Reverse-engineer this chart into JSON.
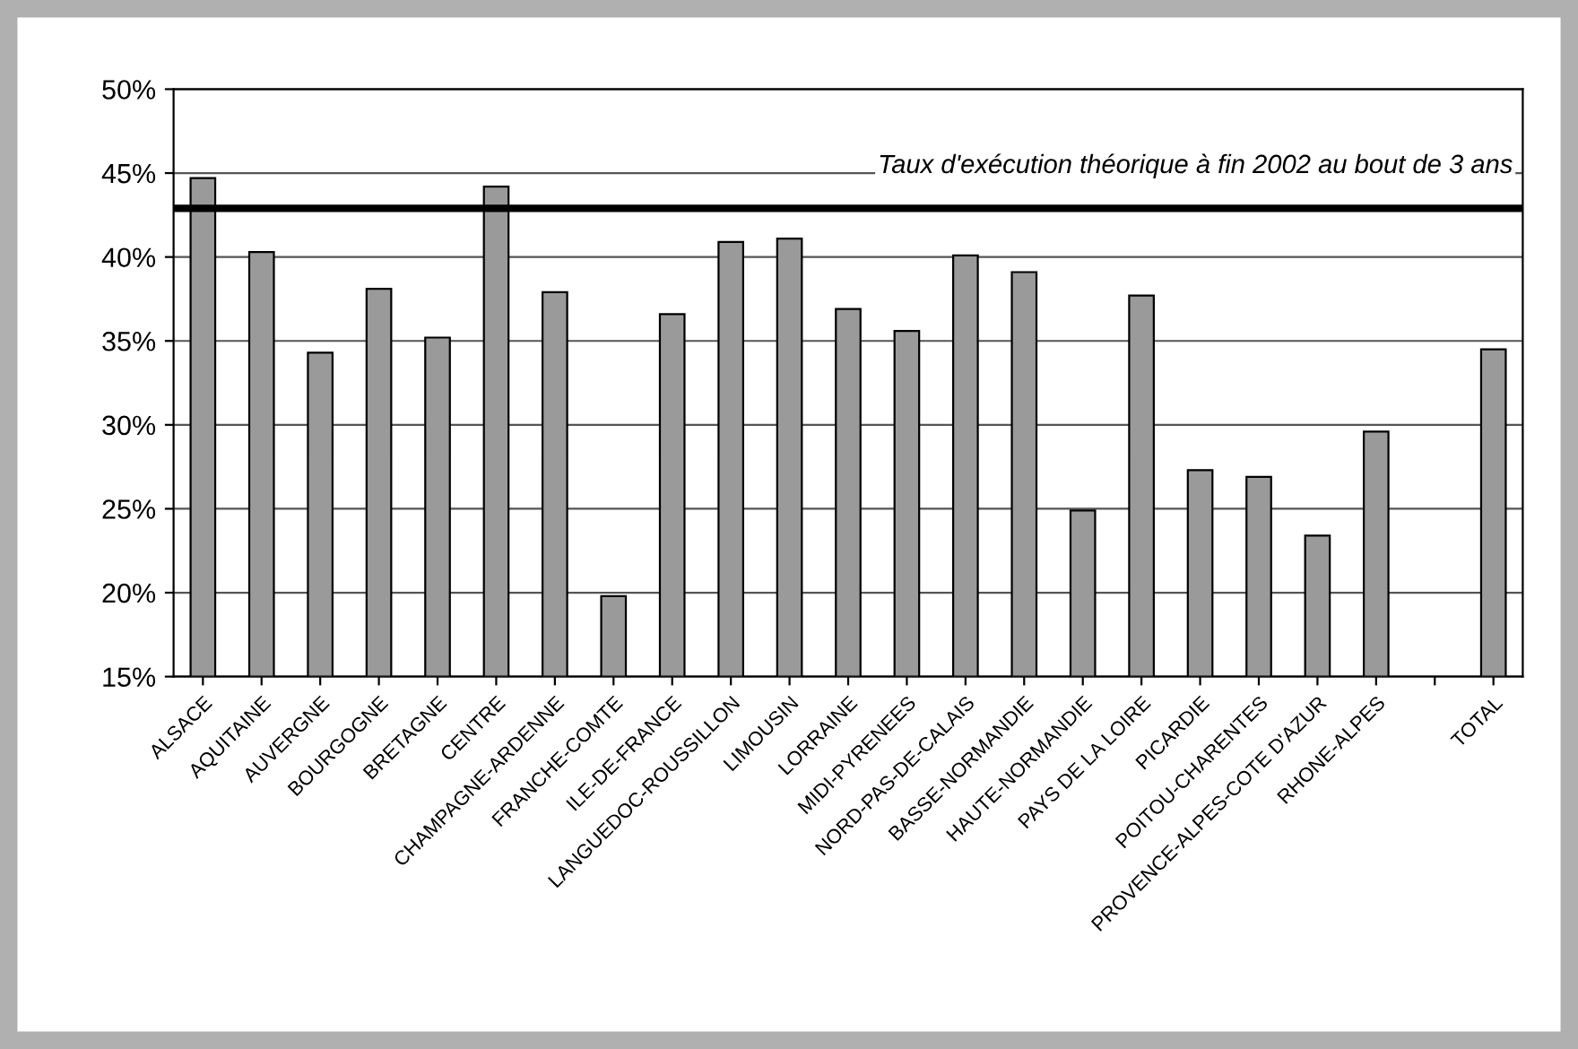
{
  "chart_data": {
    "type": "bar",
    "categories": [
      "ALSACE",
      "AQUITAINE",
      "AUVERGNE",
      "BOURGOGNE",
      "BRETAGNE",
      "CENTRE",
      "CHAMPAGNE-ARDENNE",
      "FRANCHE-COMTE",
      "ILE-DE-FRANCE",
      "LANGUEDOC-ROUSSILLON",
      "LIMOUSIN",
      "LORRAINE",
      "MIDI-PYRENEES",
      "NORD-PAS-DE-CALAIS",
      "BASSE-NORMANDIE",
      "HAUTE-NORMANDIE",
      "PAYS DE LA LOIRE",
      "PICARDIE",
      "POITOU-CHARENTES",
      "PROVENCE-ALPES-COTE D'AZUR",
      "RHONE-ALPES",
      null,
      "TOTAL"
    ],
    "values": [
      44.7,
      40.3,
      34.3,
      38.1,
      35.2,
      44.2,
      37.9,
      19.8,
      36.6,
      40.9,
      41.1,
      36.9,
      35.6,
      40.1,
      39.1,
      24.9,
      37.7,
      27.3,
      26.9,
      23.4,
      29.6,
      null,
      34.5
    ],
    "color": "#9a9a9a",
    "ylim": [
      15,
      50
    ],
    "yticks": [
      {
        "value": 15,
        "label": "15%"
      },
      {
        "value": 20,
        "label": "20%"
      },
      {
        "value": 25,
        "label": "25%"
      },
      {
        "value": 30,
        "label": "30%"
      },
      {
        "value": 35,
        "label": "35%"
      },
      {
        "value": 40,
        "label": "40%"
      },
      {
        "value": 45,
        "label": "45%"
      },
      {
        "value": 50,
        "label": "50%"
      }
    ],
    "grid": "y",
    "ref_lines": [
      {
        "axis": "y",
        "value": 42.9,
        "label": "Taux d'exécution théorique à fin 2002 au bout de 3 ans",
        "color": "#000000"
      }
    ]
  }
}
